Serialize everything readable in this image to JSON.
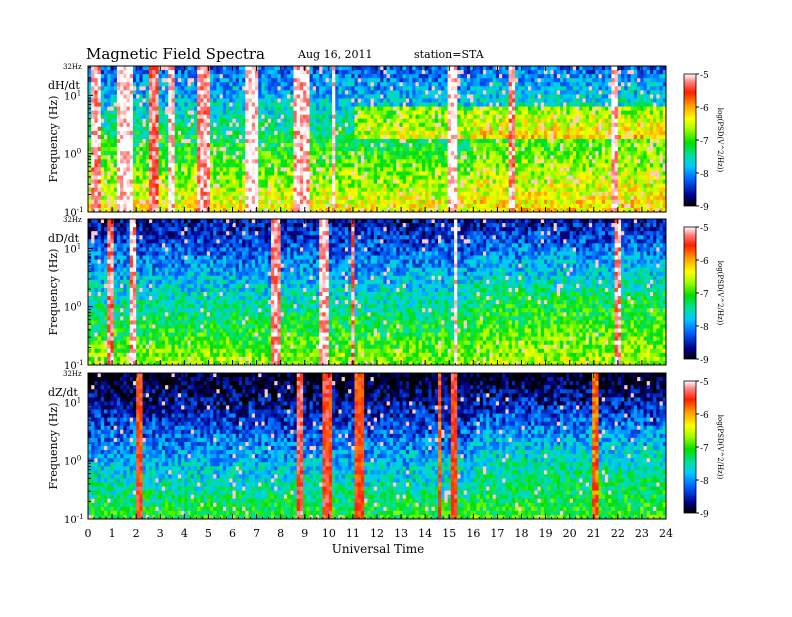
{
  "header": {
    "title": "Magnetic  Field  Spectra",
    "date": "Aug 16, 2011",
    "station": "station=STA"
  },
  "chart_data": {
    "type": "heatmap",
    "xlabel": "Universal Time",
    "xlim": [
      0,
      24
    ],
    "x_ticks": [
      "0",
      "1",
      "2",
      "3",
      "4",
      "5",
      "6",
      "7",
      "8",
      "9",
      "10",
      "11",
      "12",
      "13",
      "14",
      "15",
      "16",
      "17",
      "18",
      "19",
      "20",
      "21",
      "22",
      "23",
      "24"
    ],
    "y_scale": "log",
    "ylim_hz": [
      0.1,
      32
    ],
    "ylabel": "Frequency  (Hz)",
    "y_ticks": [
      {
        "value": 0.1,
        "base": "10",
        "exp": "-1"
      },
      {
        "value": 1,
        "base": "10",
        "exp": "0"
      },
      {
        "value": 10,
        "base": "10",
        "exp": "1"
      }
    ],
    "y_top_label": "32Hz",
    "colorbar": {
      "label": "log(PSD(V^2/Hz))",
      "range": [
        -9,
        -5
      ],
      "ticks": [
        "-5",
        "-6",
        "-7",
        "-8",
        "-9"
      ],
      "colors": [
        "#000000",
        "#00008b",
        "#0060ff",
        "#00c8ff",
        "#00e0a0",
        "#00e000",
        "#a0ff00",
        "#ffff00",
        "#ffa000",
        "#ff2000",
        "#ff8080",
        "#ffffff"
      ]
    },
    "panels": [
      {
        "name": "dH/dt",
        "description_level": "strong",
        "base_level": -7.2,
        "bands": [
          {
            "x0": 0.2,
            "x1": 0.6,
            "level": -5.2
          },
          {
            "x0": 1.2,
            "x1": 1.8,
            "level": -5.0
          },
          {
            "x0": 2.5,
            "x1": 2.9,
            "level": -5.3
          },
          {
            "x0": 3.3,
            "x1": 3.6,
            "level": -5.1
          },
          {
            "x0": 4.6,
            "x1": 5.1,
            "level": -5.2
          },
          {
            "x0": 6.6,
            "x1": 7.0,
            "level": -5.0
          },
          {
            "x0": 8.6,
            "x1": 9.2,
            "level": -5.1
          },
          {
            "x0": 10.1,
            "x1": 10.3,
            "level": -5.0
          },
          {
            "x0": 15.0,
            "x1": 15.4,
            "level": -5.0
          },
          {
            "x0": 17.5,
            "x1": 17.7,
            "level": -5.2
          },
          {
            "x0": 21.7,
            "x1": 22.0,
            "level": -5.1
          }
        ]
      },
      {
        "name": "dD/dt",
        "description_level": "medium",
        "base_level": -7.6,
        "bands": [
          {
            "x0": 0.8,
            "x1": 1.0,
            "level": -5.3
          },
          {
            "x0": 1.7,
            "x1": 2.0,
            "level": -5.2
          },
          {
            "x0": 7.6,
            "x1": 8.0,
            "level": -5.2
          },
          {
            "x0": 9.6,
            "x1": 10.0,
            "level": -5.1
          },
          {
            "x0": 10.9,
            "x1": 11.1,
            "level": -5.3
          },
          {
            "x0": 15.2,
            "x1": 15.3,
            "level": -5.0
          },
          {
            "x0": 21.9,
            "x1": 22.1,
            "level": -5.2
          }
        ]
      },
      {
        "name": "dZ/dt",
        "description_level": "weak",
        "base_level": -8.0,
        "bands": [
          {
            "x0": 2.0,
            "x1": 2.2,
            "level": -5.6
          },
          {
            "x0": 8.7,
            "x1": 8.9,
            "level": -5.4
          },
          {
            "x0": 9.7,
            "x1": 10.1,
            "level": -5.5
          },
          {
            "x0": 11.1,
            "x1": 11.4,
            "level": -5.6
          },
          {
            "x0": 14.5,
            "x1": 14.7,
            "level": -5.7
          },
          {
            "x0": 15.1,
            "x1": 15.3,
            "level": -5.5
          },
          {
            "x0": 21.0,
            "x1": 21.2,
            "level": -5.8
          }
        ]
      }
    ]
  }
}
